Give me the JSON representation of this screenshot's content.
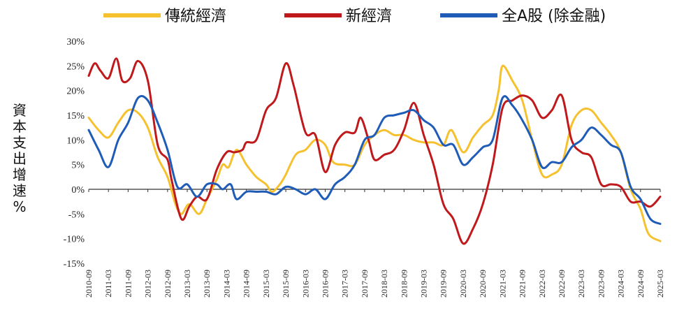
{
  "chart_data": {
    "type": "line",
    "title": "",
    "xlabel": "",
    "ylabel": "資本支出增速%",
    "ylim": [
      -15,
      30
    ],
    "yticks": [
      30,
      25,
      20,
      15,
      10,
      5,
      0,
      -5,
      -10,
      -15
    ],
    "ytick_labels": [
      "30%",
      "25%",
      "20%",
      "15%",
      "10%",
      "5%",
      "0%",
      "-5%",
      "-10%",
      "-15%"
    ],
    "xlim": [
      2010.75,
      2025.25
    ],
    "x_ticks": [
      {
        "label": "2010-09",
        "x": 2010.75
      },
      {
        "label": "2011-03",
        "x": 2011.25
      },
      {
        "label": "2011-09",
        "x": 2011.75
      },
      {
        "label": "2012-03",
        "x": 2012.25
      },
      {
        "label": "2012-09",
        "x": 2012.75
      },
      {
        "label": "2013-03",
        "x": 2013.25
      },
      {
        "label": "2013-09",
        "x": 2013.75
      },
      {
        "label": "2014-03",
        "x": 2014.25
      },
      {
        "label": "2014-09",
        "x": 2014.75
      },
      {
        "label": "2015-03",
        "x": 2015.25
      },
      {
        "label": "2015-09",
        "x": 2015.75
      },
      {
        "label": "2016-03",
        "x": 2016.25
      },
      {
        "label": "2016-09",
        "x": 2016.75
      },
      {
        "label": "2017-03",
        "x": 2017.25
      },
      {
        "label": "2017-09",
        "x": 2017.75
      },
      {
        "label": "2018-03",
        "x": 2018.25
      },
      {
        "label": "2018-09",
        "x": 2018.75
      },
      {
        "label": "2019-03",
        "x": 2019.25
      },
      {
        "label": "2019-09",
        "x": 2019.75
      },
      {
        "label": "2020-03",
        "x": 2020.25
      },
      {
        "label": "2020-09",
        "x": 2020.75
      },
      {
        "label": "2021-03",
        "x": 2021.25
      },
      {
        "label": "2021-09",
        "x": 2021.75
      },
      {
        "label": "2022-03",
        "x": 2022.25
      },
      {
        "label": "2022-09",
        "x": 2022.75
      },
      {
        "label": "2023-03",
        "x": 2023.25
      },
      {
        "label": "2023-09",
        "x": 2023.75
      },
      {
        "label": "2024-03",
        "x": 2024.25
      },
      {
        "label": "2024-09",
        "x": 2024.75
      },
      {
        "label": "2025-03",
        "x": 2025.25
      }
    ],
    "legend_position": "top",
    "grid": false,
    "series": [
      {
        "name": "傳統經濟",
        "color": "#F5C12E",
        "points": [
          [
            2010.75,
            14.5
          ],
          [
            2011.0,
            12.0
          ],
          [
            2011.25,
            10.5
          ],
          [
            2011.5,
            13.5
          ],
          [
            2011.75,
            16.0
          ],
          [
            2012.0,
            15.5
          ],
          [
            2012.25,
            12.5
          ],
          [
            2012.5,
            6.5
          ],
          [
            2012.75,
            2.5
          ],
          [
            2012.95,
            -3.0
          ],
          [
            2013.1,
            -5.0
          ],
          [
            2013.3,
            -3.0
          ],
          [
            2013.55,
            -5.0
          ],
          [
            2013.75,
            -2.0
          ],
          [
            2014.0,
            2.0
          ],
          [
            2014.15,
            5.0
          ],
          [
            2014.3,
            4.5
          ],
          [
            2014.5,
            8.0
          ],
          [
            2014.75,
            5.0
          ],
          [
            2015.0,
            2.5
          ],
          [
            2015.25,
            1.0
          ],
          [
            2015.4,
            -0.5
          ],
          [
            2015.6,
            1.0
          ],
          [
            2015.75,
            3.0
          ],
          [
            2016.0,
            7.0
          ],
          [
            2016.25,
            8.0
          ],
          [
            2016.5,
            10.0
          ],
          [
            2016.75,
            9.0
          ],
          [
            2016.95,
            5.5
          ],
          [
            2017.25,
            5.0
          ],
          [
            2017.5,
            5.0
          ],
          [
            2017.75,
            9.0
          ],
          [
            2018.0,
            11.0
          ],
          [
            2018.25,
            12.0
          ],
          [
            2018.5,
            11.0
          ],
          [
            2018.75,
            11.0
          ],
          [
            2019.0,
            10.0
          ],
          [
            2019.25,
            9.5
          ],
          [
            2019.5,
            9.5
          ],
          [
            2019.75,
            9.0
          ],
          [
            2019.95,
            12.0
          ],
          [
            2020.25,
            7.5
          ],
          [
            2020.5,
            10.5
          ],
          [
            2020.75,
            13.0
          ],
          [
            2021.0,
            15.0
          ],
          [
            2021.15,
            20.0
          ],
          [
            2021.25,
            25.0
          ],
          [
            2021.5,
            22.0
          ],
          [
            2021.75,
            18.0
          ],
          [
            2022.0,
            10.0
          ],
          [
            2022.25,
            3.0
          ],
          [
            2022.5,
            3.0
          ],
          [
            2022.75,
            5.0
          ],
          [
            2023.0,
            13.0
          ],
          [
            2023.25,
            16.0
          ],
          [
            2023.5,
            16.0
          ],
          [
            2023.75,
            13.5
          ],
          [
            2024.0,
            11.0
          ],
          [
            2024.25,
            7.5
          ],
          [
            2024.5,
            0.0
          ],
          [
            2024.75,
            -4.0
          ],
          [
            2024.95,
            -9.0
          ],
          [
            2025.25,
            -10.5
          ]
        ]
      },
      {
        "name": "新經濟",
        "color": "#C0191C",
        "points": [
          [
            2010.75,
            23.0
          ],
          [
            2010.9,
            25.5
          ],
          [
            2011.05,
            24.0
          ],
          [
            2011.25,
            22.5
          ],
          [
            2011.45,
            26.5
          ],
          [
            2011.6,
            22.0
          ],
          [
            2011.8,
            22.5
          ],
          [
            2012.0,
            26.0
          ],
          [
            2012.25,
            22.0
          ],
          [
            2012.5,
            9.0
          ],
          [
            2012.75,
            6.0
          ],
          [
            2012.85,
            2.0
          ],
          [
            2013.1,
            -6.0
          ],
          [
            2013.3,
            -3.5
          ],
          [
            2013.5,
            -1.5
          ],
          [
            2013.75,
            -2.0
          ],
          [
            2014.0,
            4.0
          ],
          [
            2014.25,
            7.5
          ],
          [
            2014.45,
            7.5
          ],
          [
            2014.65,
            8.0
          ],
          [
            2014.75,
            9.5
          ],
          [
            2015.0,
            10.0
          ],
          [
            2015.25,
            16.0
          ],
          [
            2015.5,
            18.5
          ],
          [
            2015.75,
            25.5
          ],
          [
            2015.95,
            21.0
          ],
          [
            2016.25,
            11.5
          ],
          [
            2016.5,
            11.0
          ],
          [
            2016.75,
            3.5
          ],
          [
            2017.0,
            9.0
          ],
          [
            2017.25,
            11.5
          ],
          [
            2017.5,
            11.5
          ],
          [
            2017.65,
            14.5
          ],
          [
            2017.85,
            10.0
          ],
          [
            2018.0,
            6.0
          ],
          [
            2018.25,
            7.0
          ],
          [
            2018.5,
            8.0
          ],
          [
            2018.75,
            12.0
          ],
          [
            2019.0,
            17.5
          ],
          [
            2019.25,
            11.0
          ],
          [
            2019.5,
            5.0
          ],
          [
            2019.75,
            -3.0
          ],
          [
            2020.0,
            -6.0
          ],
          [
            2020.25,
            -11.0
          ],
          [
            2020.5,
            -8.0
          ],
          [
            2020.75,
            -3.0
          ],
          [
            2021.0,
            5.0
          ],
          [
            2021.25,
            16.5
          ],
          [
            2021.5,
            18.0
          ],
          [
            2021.75,
            19.0
          ],
          [
            2022.0,
            18.0
          ],
          [
            2022.25,
            14.5
          ],
          [
            2022.5,
            16.0
          ],
          [
            2022.75,
            19.0
          ],
          [
            2023.0,
            10.0
          ],
          [
            2023.25,
            7.5
          ],
          [
            2023.5,
            6.5
          ],
          [
            2023.75,
            1.0
          ],
          [
            2024.0,
            1.0
          ],
          [
            2024.25,
            0.5
          ],
          [
            2024.5,
            -2.5
          ],
          [
            2024.75,
            -2.5
          ],
          [
            2025.0,
            -3.5
          ],
          [
            2025.25,
            -1.5
          ]
        ]
      },
      {
        "name": "全A股 (除金融)",
        "color": "#1F5CB8",
        "points": [
          [
            2010.75,
            12.0
          ],
          [
            2011.0,
            8.0
          ],
          [
            2011.25,
            4.5
          ],
          [
            2011.5,
            10.0
          ],
          [
            2011.75,
            13.5
          ],
          [
            2012.0,
            18.5
          ],
          [
            2012.25,
            18.0
          ],
          [
            2012.5,
            13.5
          ],
          [
            2012.75,
            8.0
          ],
          [
            2013.0,
            0.5
          ],
          [
            2013.25,
            1.0
          ],
          [
            2013.5,
            -1.5
          ],
          [
            2013.75,
            1.0
          ],
          [
            2014.0,
            1.0
          ],
          [
            2014.15,
            0.0
          ],
          [
            2014.35,
            1.0
          ],
          [
            2014.5,
            -2.0
          ],
          [
            2014.75,
            -0.5
          ],
          [
            2015.0,
            -0.5
          ],
          [
            2015.25,
            -0.5
          ],
          [
            2015.5,
            -1.0
          ],
          [
            2015.75,
            0.5
          ],
          [
            2016.0,
            0.0
          ],
          [
            2016.25,
            -1.0
          ],
          [
            2016.5,
            0.0
          ],
          [
            2016.75,
            -2.0
          ],
          [
            2017.0,
            1.0
          ],
          [
            2017.25,
            2.5
          ],
          [
            2017.5,
            5.0
          ],
          [
            2017.75,
            10.0
          ],
          [
            2018.0,
            11.0
          ],
          [
            2018.25,
            14.5
          ],
          [
            2018.5,
            15.0
          ],
          [
            2018.75,
            15.5
          ],
          [
            2019.0,
            16.0
          ],
          [
            2019.25,
            14.0
          ],
          [
            2019.5,
            12.5
          ],
          [
            2019.75,
            9.0
          ],
          [
            2020.0,
            9.0
          ],
          [
            2020.25,
            5.0
          ],
          [
            2020.5,
            6.5
          ],
          [
            2020.75,
            8.5
          ],
          [
            2021.0,
            10.0
          ],
          [
            2021.25,
            18.5
          ],
          [
            2021.5,
            17.0
          ],
          [
            2021.75,
            14.0
          ],
          [
            2022.0,
            10.0
          ],
          [
            2022.25,
            4.5
          ],
          [
            2022.5,
            5.5
          ],
          [
            2022.75,
            5.5
          ],
          [
            2023.0,
            8.5
          ],
          [
            2023.25,
            10.0
          ],
          [
            2023.5,
            12.5
          ],
          [
            2023.75,
            11.0
          ],
          [
            2024.0,
            9.0
          ],
          [
            2024.25,
            7.5
          ],
          [
            2024.5,
            0.5
          ],
          [
            2024.75,
            -2.0
          ],
          [
            2025.0,
            -6.0
          ],
          [
            2025.25,
            -7.0
          ]
        ]
      }
    ]
  }
}
